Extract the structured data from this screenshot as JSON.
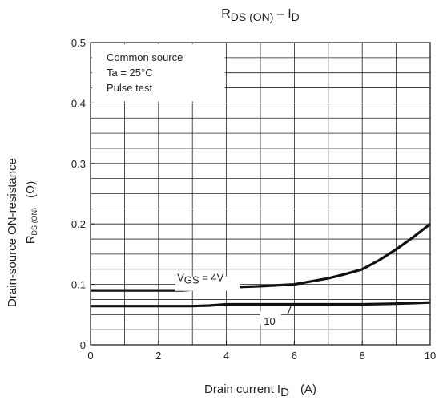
{
  "chart_data": {
    "type": "line",
    "title": {
      "main": "R",
      "sub": "DS (ON)",
      "tail": " – I",
      "sub2": "D"
    },
    "xlabel": {
      "main": "Drain current  I",
      "sub": "D",
      "unit": "(A)"
    },
    "ylabel": {
      "line1": "Drain-source ON-resistance",
      "main": "R",
      "sub": "DS (ON)",
      "unit": "(Ω)"
    },
    "xlim": [
      0,
      10
    ],
    "ylim": [
      0,
      0.5
    ],
    "x_ticks": [
      "0",
      "2",
      "4",
      "6",
      "8",
      "10"
    ],
    "x_tick_values": [
      0,
      2,
      4,
      6,
      8,
      10
    ],
    "y_ticks": [
      "0",
      "0.1",
      "0.2",
      "0.3",
      "0.4",
      "0.5"
    ],
    "y_tick_values": [
      0,
      0.1,
      0.2,
      0.3,
      0.4,
      0.5
    ],
    "grid": true,
    "conditions": [
      "Common source",
      "Ta = 25°C",
      "Pulse test"
    ],
    "series": [
      {
        "name": "VGS = 4V",
        "label": {
          "main": "V",
          "sub": "GS",
          "tail": " = 4V"
        },
        "x": [
          0,
          1,
          2,
          2.7,
          3.5,
          4,
          5,
          6,
          6.5,
          7,
          7.5,
          8,
          8.5,
          9,
          9.5,
          10
        ],
        "y": [
          0.09,
          0.09,
          0.09,
          0.09,
          0.093,
          0.095,
          0.097,
          0.1,
          0.105,
          0.11,
          0.117,
          0.125,
          0.14,
          0.158,
          0.178,
          0.2
        ]
      },
      {
        "name": "10",
        "label": {
          "main": "10"
        },
        "x": [
          0,
          1,
          2,
          3,
          3.5,
          4,
          5,
          6,
          7,
          8,
          9,
          10
        ],
        "y": [
          0.064,
          0.064,
          0.064,
          0.064,
          0.065,
          0.067,
          0.067,
          0.067,
          0.067,
          0.067,
          0.068,
          0.07
        ]
      }
    ]
  }
}
